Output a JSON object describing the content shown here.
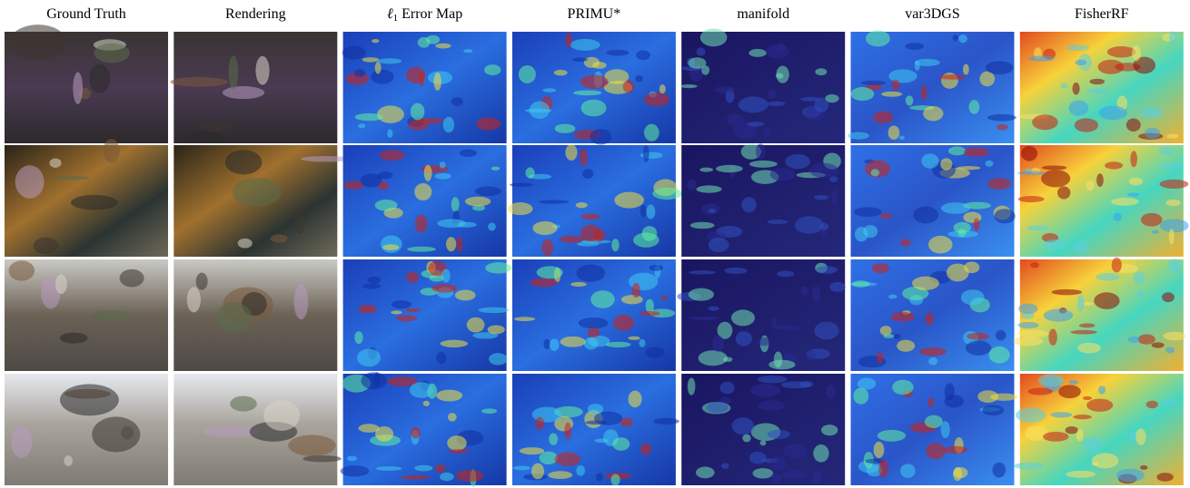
{
  "figure": {
    "columns": [
      {
        "label": "Ground Truth"
      },
      {
        "label": "Rendering"
      },
      {
        "symbol": "ℓ",
        "subscript": "1",
        "label": "Error Map"
      },
      {
        "label": "PRIMU*"
      },
      {
        "label": "manifold"
      },
      {
        "label": "var3DGS"
      },
      {
        "label": "FisherRF"
      }
    ]
  }
}
